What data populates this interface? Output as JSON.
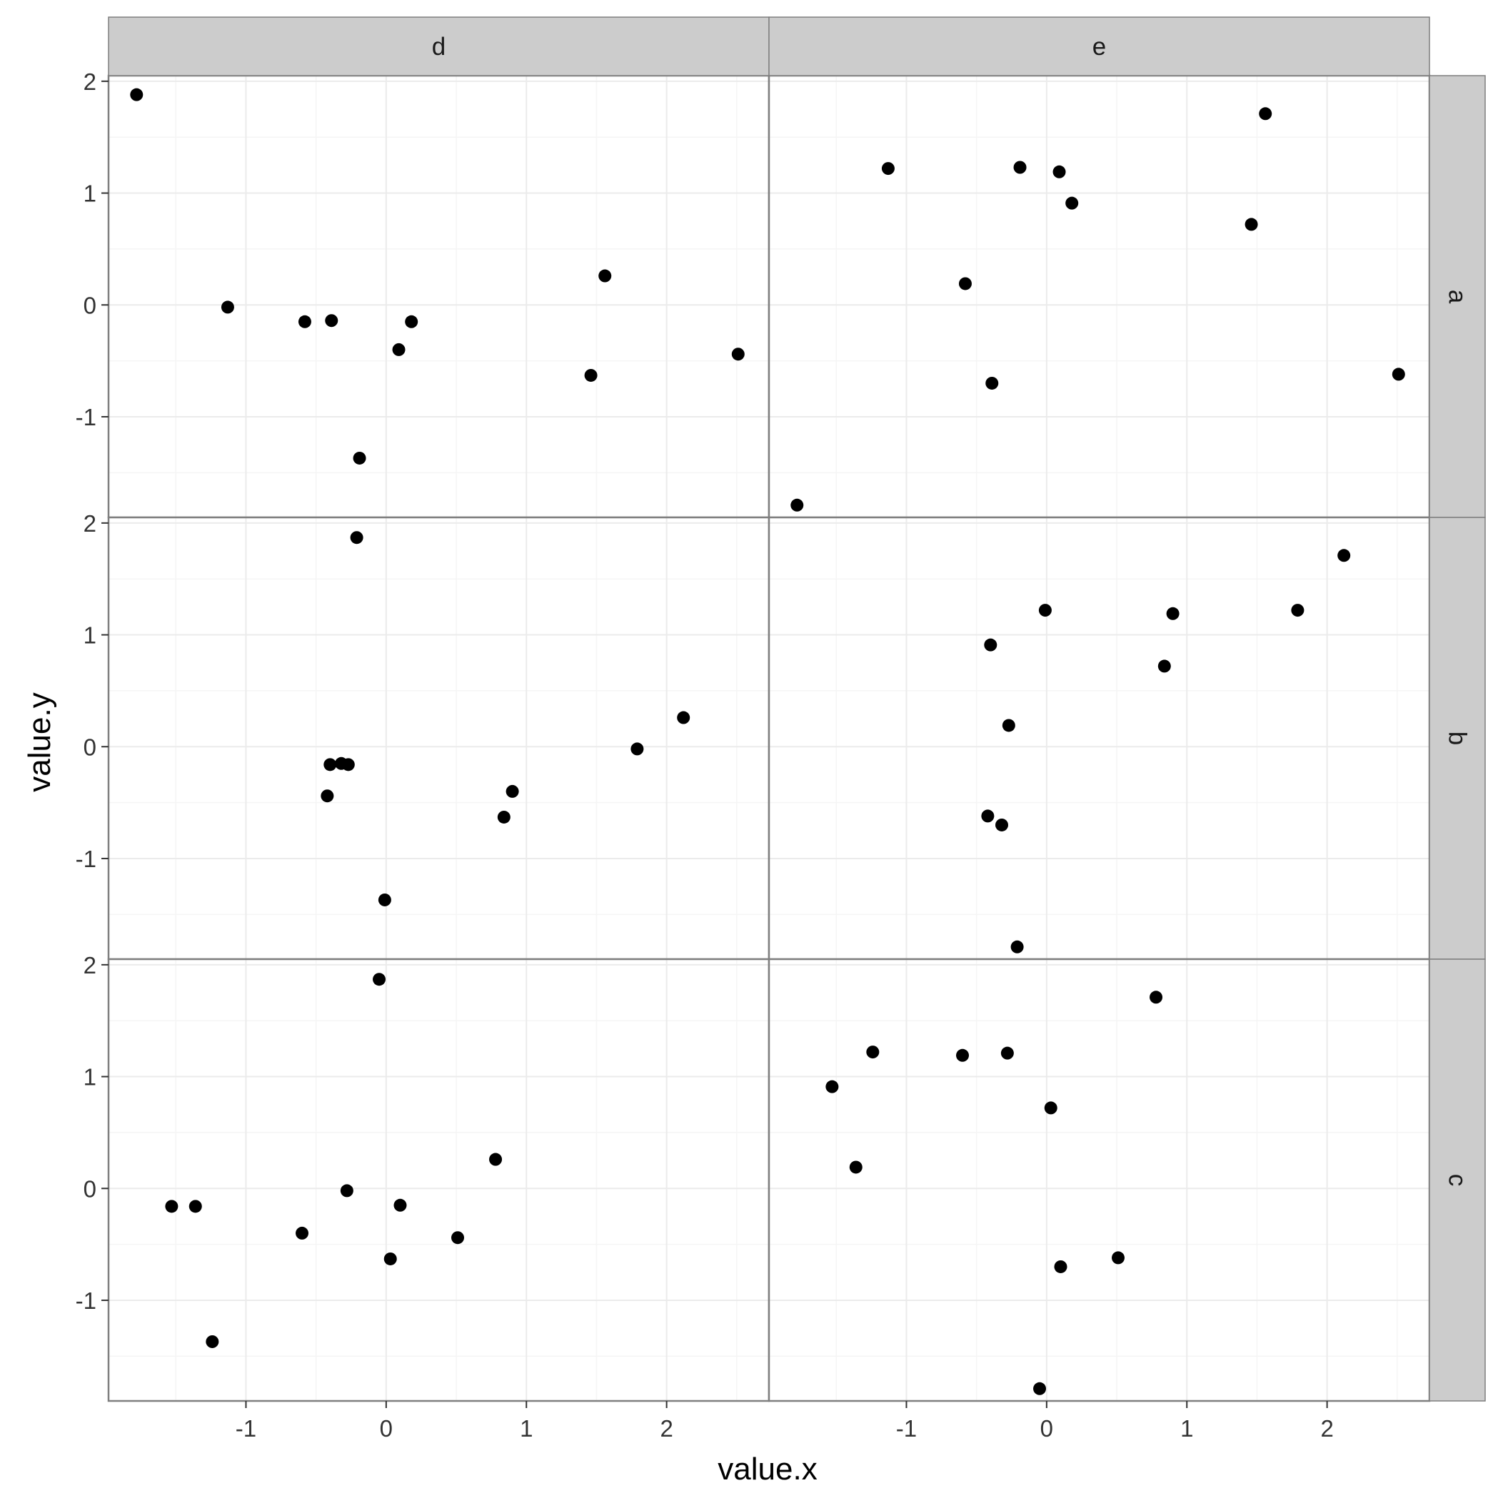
{
  "chart_data": {
    "type": "scatter",
    "xlabel": "value.x",
    "ylabel": "value.y",
    "xlim": [
      -1.98,
      2.73
    ],
    "ylim": [
      -1.9,
      2.05
    ],
    "x_ticks": [
      -1,
      0,
      1,
      2
    ],
    "y_ticks": [
      -1,
      0,
      1,
      2
    ],
    "column_facets": [
      "d",
      "e"
    ],
    "row_facets": [
      "a",
      "b",
      "c"
    ],
    "grid": true,
    "colors": {
      "point": "#000000",
      "strip_fill": "#cccccc",
      "panel_border": "#7f7f7f",
      "grid_major": "#ebebeb",
      "grid_minor": "#f5f5f5"
    },
    "panels": [
      {
        "row": "a",
        "col": "d",
        "x": [
          -1.78,
          -1.13,
          -0.58,
          -0.39,
          -0.19,
          0.09,
          0.18,
          1.46,
          1.56,
          2.51
        ],
        "y": [
          1.88,
          -0.02,
          -0.15,
          -0.14,
          -1.37,
          -0.4,
          -0.15,
          -0.63,
          0.26,
          -0.44
        ]
      },
      {
        "row": "a",
        "col": "e",
        "x": [
          -1.78,
          -1.13,
          -0.58,
          -0.39,
          -0.19,
          0.09,
          0.18,
          1.46,
          1.56,
          2.51
        ],
        "y": [
          -1.79,
          1.22,
          0.19,
          -0.7,
          1.23,
          1.19,
          0.91,
          0.72,
          1.71,
          -0.62
        ]
      },
      {
        "row": "b",
        "col": "d",
        "x": [
          -0.4,
          -0.21,
          -0.27,
          -0.42,
          -0.32,
          -0.01,
          0.84,
          0.9,
          1.79,
          2.12
        ],
        "y": [
          -0.16,
          1.87,
          -0.16,
          -0.44,
          -0.15,
          -1.37,
          -0.63,
          -0.4,
          -0.02,
          0.26
        ]
      },
      {
        "row": "b",
        "col": "e",
        "x": [
          -0.4,
          -0.21,
          -0.27,
          -0.42,
          -0.32,
          -0.01,
          0.84,
          0.9,
          1.79,
          2.12
        ],
        "y": [
          0.91,
          -1.79,
          0.19,
          -0.62,
          -0.7,
          1.22,
          0.72,
          1.19,
          1.22,
          1.71
        ]
      },
      {
        "row": "c",
        "col": "d",
        "x": [
          -1.53,
          -1.36,
          -1.24,
          -0.6,
          -0.28,
          -0.05,
          0.03,
          0.1,
          0.51,
          0.78
        ],
        "y": [
          -0.16,
          -0.16,
          -1.37,
          -0.4,
          -0.02,
          1.87,
          -0.63,
          -0.15,
          -0.44,
          0.26
        ]
      },
      {
        "row": "c",
        "col": "e",
        "x": [
          -1.53,
          -1.36,
          -1.24,
          -0.6,
          -0.28,
          -0.05,
          0.03,
          0.1,
          0.51,
          0.78
        ],
        "y": [
          0.91,
          0.19,
          1.22,
          1.19,
          1.21,
          -1.79,
          0.72,
          -0.7,
          -0.62,
          1.71
        ]
      }
    ]
  }
}
